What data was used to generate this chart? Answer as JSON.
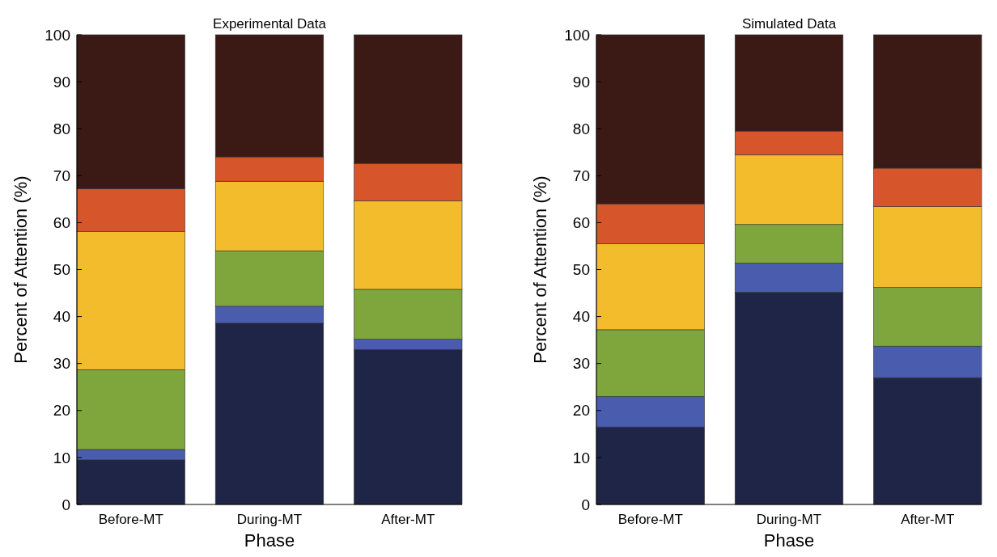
{
  "chart_data": [
    {
      "type": "bar",
      "title": "Experimental Data",
      "xlabel": "Phase",
      "ylabel": "Percent of Attention (%)",
      "categories": [
        "Before-MT",
        "During-MT",
        "After-MT"
      ],
      "stacked": true,
      "ylim": [
        0,
        100
      ],
      "yticks": [
        0,
        10,
        20,
        30,
        40,
        50,
        60,
        70,
        80,
        90,
        100
      ],
      "series": [
        {
          "color": "#1f2547",
          "values": [
            9.5,
            38.6,
            33
          ]
        },
        {
          "color": "#4a5cae",
          "values": [
            2.2,
            3.6,
            2.2
          ]
        },
        {
          "color": "#7ea63c",
          "values": [
            17,
            11.8,
            10.6
          ]
        },
        {
          "color": "#f2bc2c",
          "values": [
            29.4,
            14.8,
            18.8
          ]
        },
        {
          "color": "#d6552a",
          "values": [
            9.1,
            5.2,
            8
          ]
        },
        {
          "color": "#3b1a16",
          "values": [
            32.8,
            26,
            27.4
          ]
        }
      ]
    },
    {
      "type": "bar",
      "title": "Simulated Data",
      "xlabel": "Phase",
      "ylabel": "Percent of Attention (%)",
      "categories": [
        "Before-MT",
        "During-MT",
        "After-MT"
      ],
      "stacked": true,
      "ylim": [
        0,
        100
      ],
      "yticks": [
        0,
        10,
        20,
        30,
        40,
        50,
        60,
        70,
        80,
        90,
        100
      ],
      "series": [
        {
          "color": "#1f2547",
          "values": [
            16.5,
            45.2,
            27
          ]
        },
        {
          "color": "#4a5cae",
          "values": [
            6.5,
            6.2,
            6.7
          ]
        },
        {
          "color": "#7ea63c",
          "values": [
            14.2,
            8.2,
            12.5
          ]
        },
        {
          "color": "#f2bc2c",
          "values": [
            18.3,
            14.8,
            17.2
          ]
        },
        {
          "color": "#d6552a",
          "values": [
            8.5,
            5.1,
            8.2
          ]
        },
        {
          "color": "#3b1a16",
          "values": [
            36,
            20.5,
            28.4
          ]
        }
      ]
    }
  ]
}
